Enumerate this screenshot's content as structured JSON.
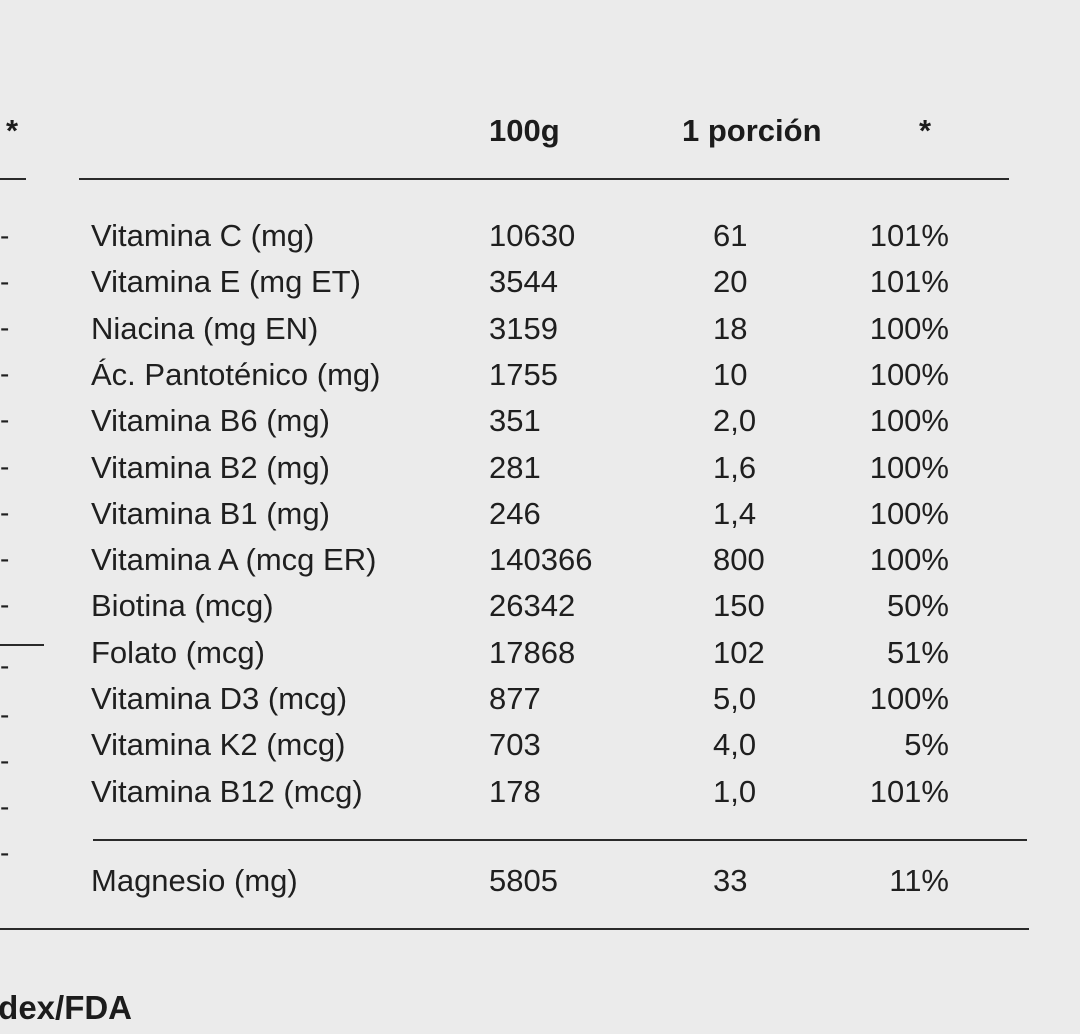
{
  "left_column": {
    "header_star": "*",
    "dash_marker": "-"
  },
  "table": {
    "headers": {
      "per_100g": "100g",
      "per_portion": "1 porción",
      "percent": "*"
    },
    "rows": [
      {
        "name": "Vitamina C (mg)",
        "per_100g": "10630",
        "per_portion": "61",
        "percent": "101%"
      },
      {
        "name": "Vitamina E (mg ET)",
        "per_100g": "3544",
        "per_portion": "20",
        "percent": "101%"
      },
      {
        "name": "Niacina (mg EN)",
        "per_100g": "3159",
        "per_portion": "18",
        "percent": "100%"
      },
      {
        "name": "Ác. Pantoténico (mg)",
        "per_100g": "1755",
        "per_portion": "10",
        "percent": "100%"
      },
      {
        "name": "Vitamina B6 (mg)",
        "per_100g": "351",
        "per_portion": "2,0",
        "percent": "100%"
      },
      {
        "name": "Vitamina B2 (mg)",
        "per_100g": "281",
        "per_portion": "1,6",
        "percent": "100%"
      },
      {
        "name": "Vitamina B1 (mg)",
        "per_100g": "246",
        "per_portion": "1,4",
        "percent": "100%"
      },
      {
        "name": "Vitamina A (mcg ER)",
        "per_100g": "140366",
        "per_portion": "800",
        "percent": "100%"
      },
      {
        "name": "Biotina (mcg)",
        "per_100g": "26342",
        "per_portion": "150",
        "percent": "50%"
      },
      {
        "name": "Folato (mcg)",
        "per_100g": "17868",
        "per_portion": "102",
        "percent": "51%"
      },
      {
        "name": "Vitamina D3 (mcg)",
        "per_100g": "877",
        "per_portion": "5,0",
        "percent": "100%"
      },
      {
        "name": "Vitamina K2 (mcg)",
        "per_100g": "703",
        "per_portion": "4,0",
        "percent": "5%"
      },
      {
        "name": "Vitamina B12 (mcg)",
        "per_100g": "178",
        "per_portion": "1,0",
        "percent": "101%"
      }
    ],
    "mineral_row": {
      "name": "Magnesio (mg)",
      "per_100g": "5805",
      "per_portion": "33",
      "percent": "11%"
    }
  },
  "footer": {
    "text": "odex/FDA"
  }
}
